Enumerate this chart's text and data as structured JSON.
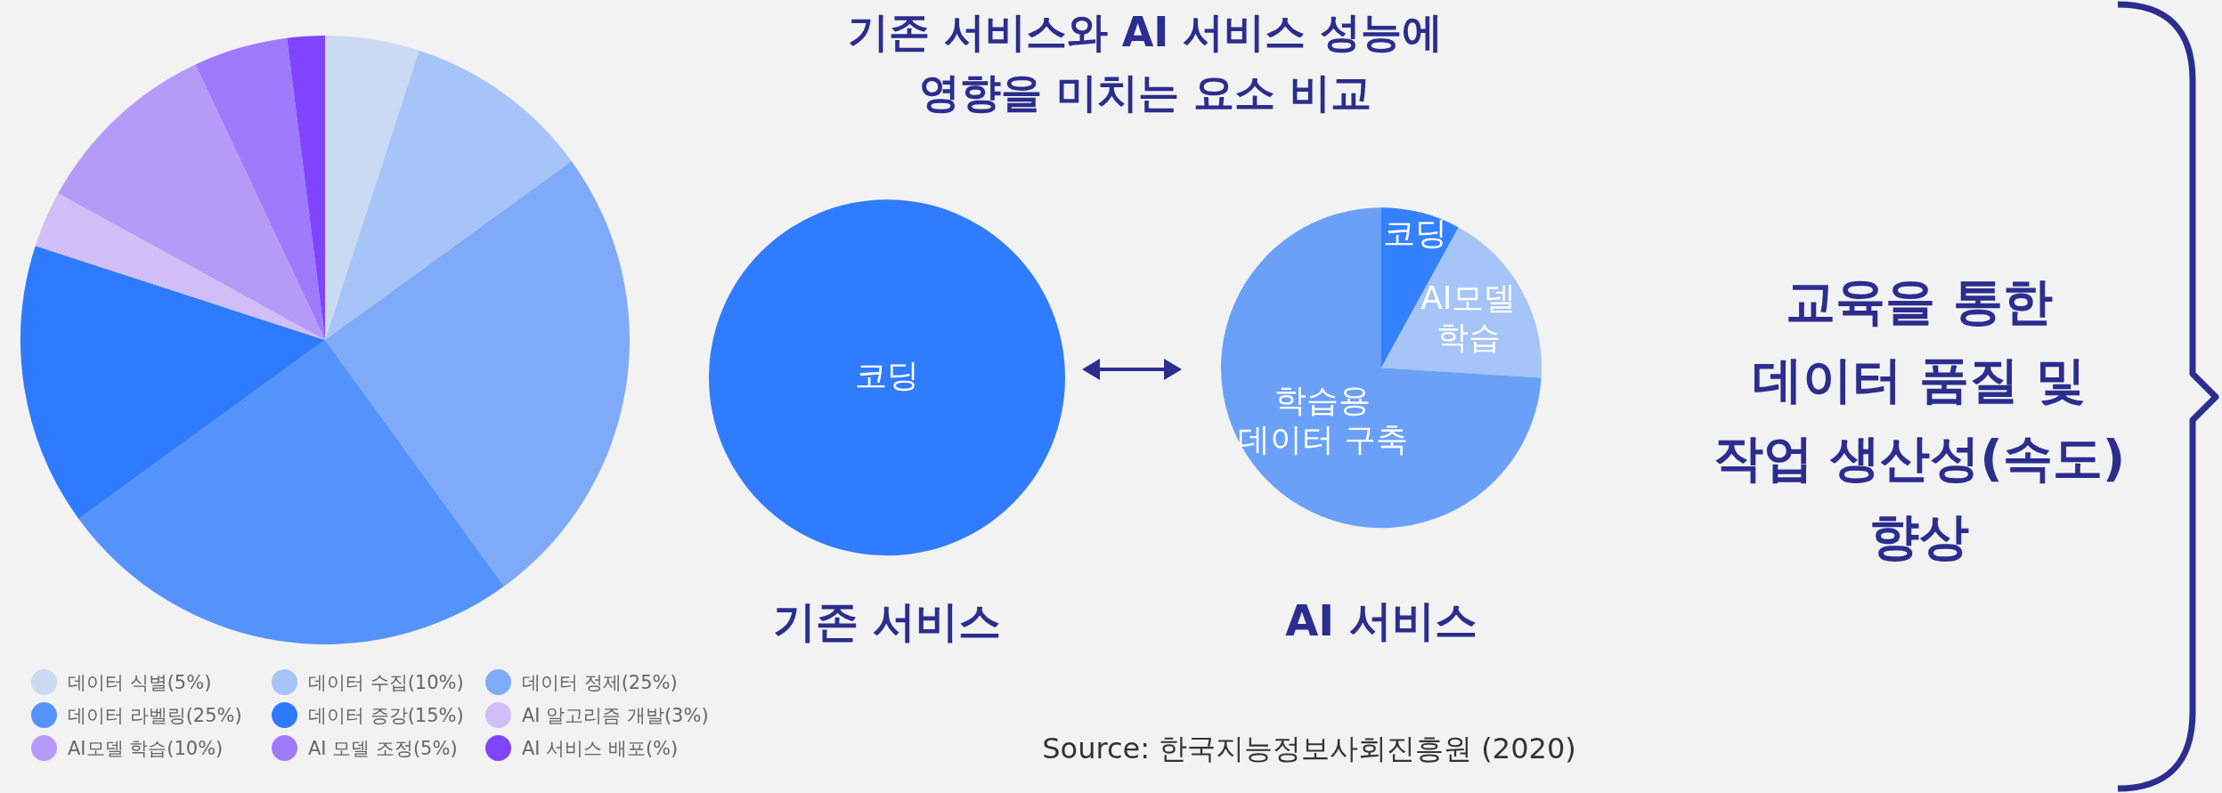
{
  "chart_data": [
    {
      "type": "pie",
      "categories": [
        "데이터 식별(5%)",
        "데이터 수집(10%)",
        "데이터 정제(25%)",
        "데이터 라벨링(25%)",
        "데이터 증강(15%)",
        "AI 알고리즘 개발(3%)",
        "AI모델 학습(10%)",
        "AI 모델 조정(5%)",
        "AI 서비스 배포(%)"
      ],
      "values": [
        5,
        10,
        25,
        25,
        15,
        3,
        10,
        5,
        2
      ],
      "colors": [
        "#cbdaf3",
        "#a6c4f8",
        "#7faaf8",
        "#5593fc",
        "#2f7bff",
        "#d1bef6",
        "#b59bf7",
        "#9f7bfc",
        "#8044ff"
      ],
      "legend": "bottom"
    },
    {
      "type": "pie",
      "title": "기존 서비스",
      "categories": [
        "코딩"
      ],
      "values": [
        100
      ],
      "colors": [
        "#307cff"
      ]
    },
    {
      "type": "pie",
      "title": "AI 서비스",
      "categories": [
        "코딩",
        "AI모델\n학습",
        "학습용\n데이터 구축"
      ],
      "values": [
        8,
        18,
        74
      ],
      "colors": [
        "#3381ff",
        "#a5c4f7",
        "#6aa0f8"
      ]
    },
    {
      "type": "other",
      "title": "기존 서비스와 AI 서비스 성능에\n영향을 미치는 요소 비교",
      "annotations": [
        "교육을 통한\n데이터 품질 및\n작업 생산성(속도)\n향상",
        "Source: 한국지능정보사회진흥원 (2020)"
      ]
    }
  ]
}
